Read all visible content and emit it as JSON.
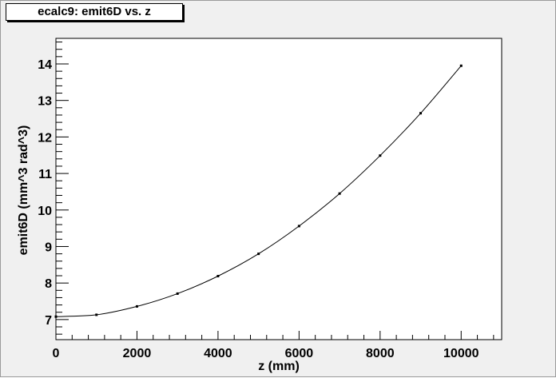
{
  "chart_data": {
    "type": "line",
    "title": "ecalc9: emit6D vs. z",
    "xlabel": "z (mm)",
    "ylabel": "emit6D  (mm^3 rad^3)",
    "xlim": [
      0,
      11000
    ],
    "ylim": [
      6.45,
      14.7
    ],
    "x_ticks": [
      0,
      2000,
      4000,
      6000,
      8000,
      10000
    ],
    "x_tick_labels": [
      "0",
      "2000",
      "4000",
      "6000",
      "8000",
      "10000"
    ],
    "y_ticks": [
      7,
      8,
      9,
      10,
      11,
      12,
      13,
      14
    ],
    "y_tick_labels": [
      "7",
      "8",
      "9",
      "10",
      "11",
      "12",
      "13",
      "14"
    ],
    "grid": false,
    "series": [
      {
        "x": [
          0,
          1000,
          2000,
          3000,
          4000,
          5000,
          6000,
          7000,
          8000,
          9000,
          10000
        ],
        "y": [
          7.08,
          7.13,
          7.36,
          7.71,
          8.19,
          8.8,
          9.56,
          10.45,
          11.49,
          12.65,
          13.95
        ],
        "color": "#000000"
      }
    ]
  }
}
